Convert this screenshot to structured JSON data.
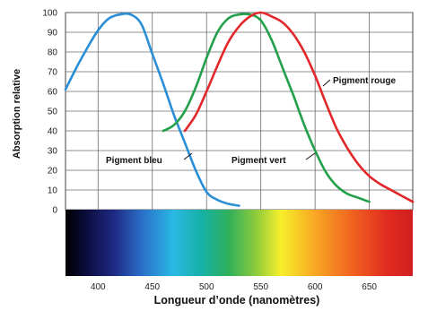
{
  "chart_data": {
    "type": "line",
    "title": "",
    "xlabel": "Longueur d’onde (nanomètres)",
    "ylabel": "Absorption relative",
    "xlim": [
      370,
      690
    ],
    "ylim": [
      0,
      100
    ],
    "x_ticks": [
      "400",
      "450",
      "500",
      "550",
      "600",
      "650"
    ],
    "y_ticks": [
      "0",
      "10",
      "20",
      "30",
      "40",
      "50",
      "60",
      "70",
      "80",
      "90",
      "100"
    ],
    "grid": true,
    "spectrum_bar": true,
    "series": [
      {
        "name": "Pigment bleu",
        "color": "#2a8fd6",
        "x": [
          370,
          380,
          390,
          400,
          410,
          420,
          430,
          440,
          450,
          460,
          470,
          480,
          490,
          500,
          510,
          520,
          530
        ],
        "y": [
          61,
          72,
          82,
          91,
          97,
          99,
          99,
          94,
          79,
          64,
          48,
          34,
          20,
          9,
          5,
          3,
          2
        ]
      },
      {
        "name": "Pigment vert",
        "color": "#22a04a",
        "x": [
          460,
          470,
          480,
          490,
          500,
          510,
          520,
          530,
          540,
          550,
          560,
          570,
          580,
          590,
          600,
          610,
          620,
          630,
          640,
          650
        ],
        "y": [
          40,
          43,
          50,
          62,
          77,
          90,
          97,
          99,
          99,
          96,
          86,
          72,
          58,
          43,
          30,
          19,
          12,
          8,
          6,
          4
        ]
      },
      {
        "name": "Pigment rouge",
        "color": "#e3282b",
        "x": [
          480,
          490,
          500,
          510,
          520,
          530,
          540,
          550,
          560,
          570,
          580,
          590,
          600,
          610,
          620,
          630,
          640,
          650,
          660,
          670,
          680,
          690
        ],
        "y": [
          40,
          48,
          60,
          73,
          85,
          93,
          98,
          100,
          98,
          95,
          89,
          80,
          68,
          54,
          41,
          31,
          23,
          17,
          13,
          10,
          7,
          4
        ]
      }
    ]
  }
}
